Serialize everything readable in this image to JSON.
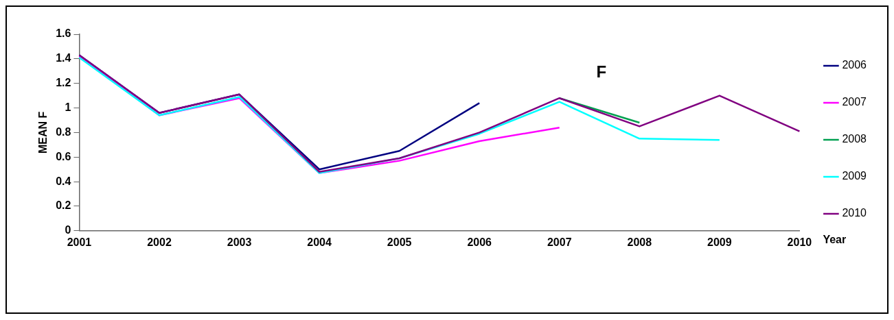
{
  "chart_data": {
    "type": "line",
    "title": "F",
    "xlabel": "Year",
    "ylabel": "MEAN F",
    "categories": [
      "2001",
      "2002",
      "2003",
      "2004",
      "2005",
      "2006",
      "2007",
      "2008",
      "2009",
      "2010"
    ],
    "series": [
      {
        "name": "2006",
        "color": "#000080",
        "values": [
          1.43,
          0.96,
          1.11,
          0.5,
          0.65,
          1.04,
          null,
          null,
          null,
          null
        ]
      },
      {
        "name": "2007",
        "color": "#ff00ff",
        "values": [
          1.42,
          0.94,
          1.08,
          0.47,
          0.57,
          0.73,
          0.84,
          null,
          null,
          null
        ]
      },
      {
        "name": "2008",
        "color": "#00a050",
        "values": [
          null,
          null,
          null,
          null,
          null,
          null,
          1.08,
          0.88,
          null,
          null
        ]
      },
      {
        "name": "2009",
        "color": "#00ffff",
        "values": [
          1.41,
          0.94,
          1.09,
          0.47,
          0.59,
          0.79,
          1.05,
          0.75,
          0.74,
          null
        ]
      },
      {
        "name": "2010",
        "color": "#800080",
        "values": [
          1.43,
          0.96,
          1.11,
          0.48,
          0.59,
          0.8,
          1.08,
          0.85,
          1.1,
          0.81
        ]
      }
    ],
    "ylim": [
      0,
      1.6
    ],
    "yticks": [
      0,
      0.2,
      0.4,
      0.6,
      0.8,
      1,
      1.2,
      1.4,
      1.6
    ],
    "grid": false,
    "legend": "right",
    "marker": "none",
    "line_style": "solid"
  }
}
